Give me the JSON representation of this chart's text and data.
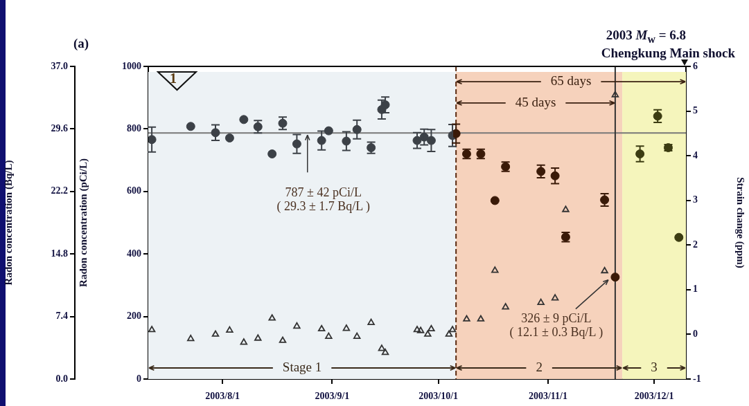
{
  "chart_data": {
    "type": "scatter",
    "title": "2003 M$_{w}$ = 6.8",
    "subtitle": "Chengkung Main shock",
    "ylabel": "Radon concentration (pCi/L)",
    "y2label": "Strain change (ppm)",
    "y3label": "Radon concentration (Bq/L)",
    "xlim": [
      "2003-07-11",
      "2003-12-10"
    ],
    "xticks": [
      {
        "value": "2003-08-01",
        "label": "2003/8/1"
      },
      {
        "value": "2003-09-01",
        "label": "2003/9/1"
      },
      {
        "value": "2003-10-01",
        "label": "2003/10/1"
      },
      {
        "value": "2003-11-01",
        "label": "2003/11/1"
      },
      {
        "value": "2003-12-01",
        "label": "2003/12/1"
      }
    ],
    "ylim": [
      0,
      1000
    ],
    "yticks": [
      0,
      200,
      400,
      600,
      800,
      1000
    ],
    "y2lim": [
      -1,
      6
    ],
    "y2ticks": [
      -1,
      0,
      1,
      2,
      3,
      4,
      5,
      6
    ],
    "y3lim": [
      0,
      37
    ],
    "y3ticks": [
      {
        "value": 0,
        "label": "0.0"
      },
      7.4,
      14.8,
      22.2,
      29.6,
      {
        "value": 37,
        "label": "37.0"
      }
    ],
    "grid": false,
    "legend": false,
    "series": [
      {
        "type": "scatter",
        "marker": "circle",
        "x": [
          "2003-07-12",
          "2003-07-23",
          "2003-07-30",
          "2003-08-03",
          "2003-08-07",
          "2003-08-11",
          "2003-08-15",
          "2003-08-18",
          "2003-08-22",
          "2003-08-29",
          "2003-08-31",
          "2003-09-05",
          "2003-09-08",
          "2003-09-12",
          "2003-09-15",
          "2003-09-16",
          "2003-09-25",
          "2003-09-27",
          "2003-09-29",
          "2003-10-05",
          "2003-10-06",
          "2003-10-09",
          "2003-10-13",
          "2003-10-17",
          "2003-10-20",
          "2003-10-30",
          "2003-11-03",
          "2003-11-06",
          "2003-11-17",
          "2003-11-20",
          "2003-11-27",
          "2003-12-02",
          "2003-12-05",
          "2003-12-08"
        ],
        "values": [
          766,
          808,
          788,
          771,
          830,
          807,
          720,
          818,
          752,
          763,
          794,
          761,
          798,
          740,
          862,
          877,
          763,
          774,
          763,
          779,
          785,
          720,
          720,
          571,
          679,
          664,
          650,
          454,
          573,
          326,
          720,
          841,
          740,
          453
        ],
        "errors": [
          40,
          null,
          25,
          null,
          null,
          20,
          null,
          20,
          30,
          30,
          null,
          30,
          30,
          18,
          30,
          25,
          25,
          25,
          35,
          35,
          30,
          15,
          15,
          null,
          15,
          20,
          25,
          15,
          20,
          null,
          25,
          20,
          10,
          null
        ],
        "colors": [
          "#3c4147",
          "#3c4147",
          "#3c4147",
          "#3c4147",
          "#3c4147",
          "#3c4147",
          "#3c4147",
          "#3c4147",
          "#3c4147",
          "#3c4147",
          "#3c4147",
          "#3c4147",
          "#3c4147",
          "#3c4147",
          "#3c4147",
          "#3c4147",
          "#3c4147",
          "#3c4147",
          "#3c4147",
          "#3c4147",
          "#3a1a08",
          "#3a1a08",
          "#3a1a08",
          "#3a1a08",
          "#3a1a08",
          "#3a1a08",
          "#3a1a08",
          "#3a1a08",
          "#3a1a08",
          "#3a1a08",
          "#3c3c12",
          "#3c3c12",
          "#3c3c12",
          "#3c3c12"
        ]
      },
      {
        "type": "scatter",
        "marker": "triangle",
        "axis": "y2",
        "color": "#333333",
        "x": [
          "2003-07-12",
          "2003-07-23",
          "2003-07-30",
          "2003-08-03",
          "2003-08-07",
          "2003-08-11",
          "2003-08-15",
          "2003-08-18",
          "2003-08-22",
          "2003-08-29",
          "2003-08-31",
          "2003-09-05",
          "2003-09-08",
          "2003-09-12",
          "2003-09-15",
          "2003-09-16",
          "2003-09-25",
          "2003-09-26",
          "2003-09-28",
          "2003-09-29",
          "2003-10-04",
          "2003-10-05",
          "2003-10-09",
          "2003-10-13",
          "2003-10-17",
          "2003-10-20",
          "2003-10-30",
          "2003-11-03",
          "2003-11-06",
          "2003-11-17",
          "2003-11-20"
        ],
        "values": [
          0.1,
          -0.1,
          0.0,
          0.09,
          -0.18,
          -0.09,
          0.36,
          -0.14,
          0.18,
          0.12,
          -0.05,
          0.13,
          -0.05,
          0.26,
          -0.32,
          -0.41,
          0.1,
          0.08,
          0.0,
          0.12,
          0.0,
          0.1,
          0.34,
          0.34,
          1.43,
          0.61,
          0.71,
          0.81,
          2.79,
          1.42,
          5.36
        ]
      }
    ],
    "bands": [
      {
        "axis": "x",
        "from": "2003-07-11",
        "to": "2003-10-06",
        "label": "Stage 1",
        "color": "#edf2f5"
      },
      {
        "axis": "x",
        "from": "2003-10-06",
        "to": "2003-11-22",
        "label": "2",
        "color": "#f6d2bc"
      },
      {
        "axis": "x",
        "from": "2003-11-22",
        "to": "2003-12-10",
        "label": "3",
        "color": "#f5f5bc"
      }
    ],
    "ref_lines": [
      {
        "axis": "y",
        "value": 787,
        "color": "#777777",
        "line_style": "solid"
      },
      {
        "axis": "x",
        "value": "2003-10-06",
        "color": "#5a2a10",
        "line_style": "dashed"
      },
      {
        "axis": "x",
        "value": "2003-11-20",
        "color": "#333333",
        "line_style": "solid"
      }
    ],
    "annotations": [
      "(a)",
      "1",
      {
        "text": "65 days",
        "x": "2003-12-10",
        "y": 951
      },
      {
        "text": "45 days",
        "x": "2003-11-20",
        "y": 883
      },
      {
        "text": "787 ± 42 pCi/L\n( 29.3 ± 1.7 Bq/L )",
        "x": "2003-08-25",
        "y": 787
      },
      {
        "text": "326 ± 9 pCi/L\n( 12.1 ± 0.3 Bq/L )",
        "x": "2003-11-20",
        "y": 326
      }
    ]
  }
}
